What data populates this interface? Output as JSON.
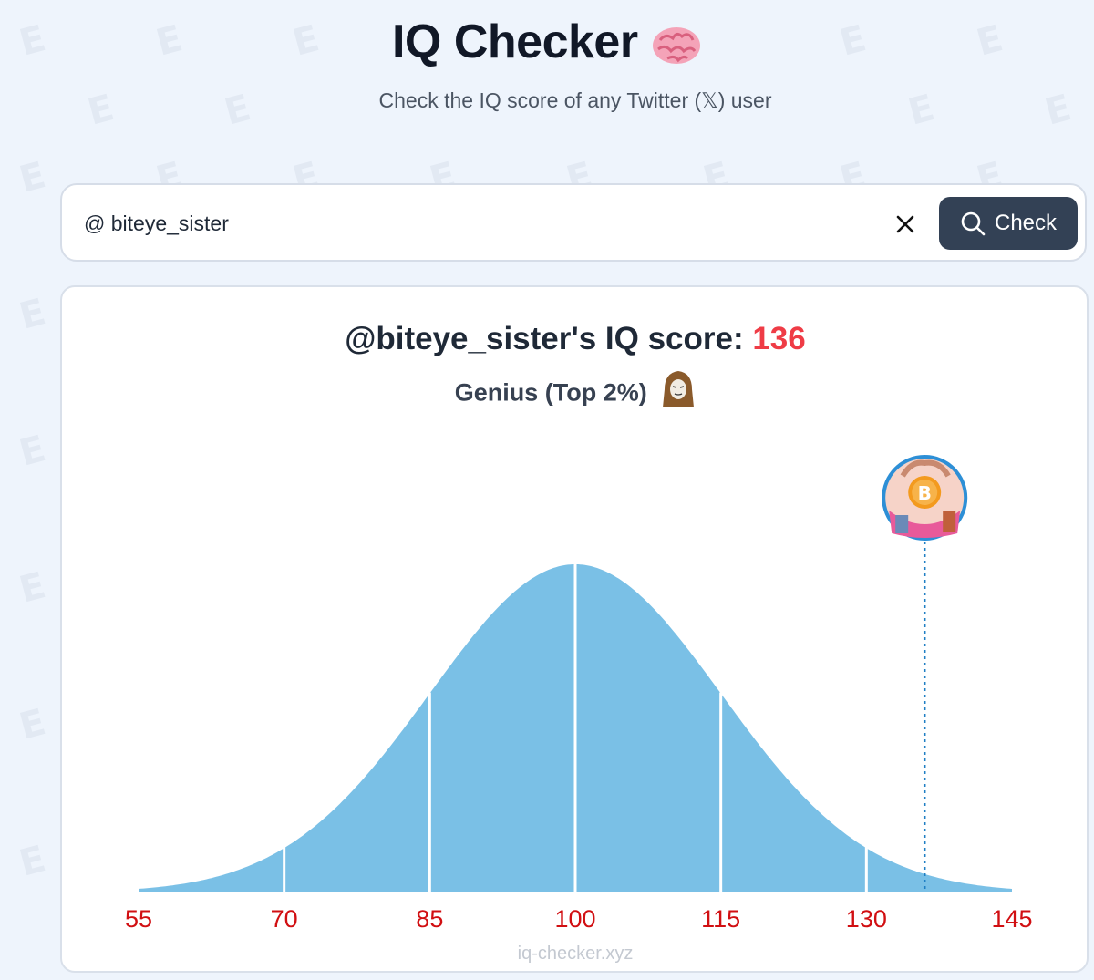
{
  "header": {
    "title": "IQ Checker",
    "subtitle": "Check the IQ score of any Twitter (𝕏) user",
    "brain_icon": "brain-emoji-icon"
  },
  "search": {
    "value": "@ biteye_sister",
    "clear_icon": "close-icon",
    "button_label": "Check",
    "button_icon": "search-icon"
  },
  "result": {
    "handle_prefix": "@biteye_sister's IQ score: ",
    "score": "136",
    "category": "Genius (Top 2%)",
    "category_icon": "hooded-wojak-icon",
    "avatar_icon": "user-avatar-bitcoin-icon"
  },
  "colors": {
    "accent_red": "#ef3c46",
    "tick_red": "#d10f12",
    "curve_fill": "#7ac0e6",
    "button_bg": "#334155",
    "marker_line": "#1f7fc4"
  },
  "chart_data": {
    "type": "area",
    "title": "",
    "xlabel": "",
    "ylabel": "",
    "distribution": "normal",
    "mean": 100,
    "sd": 15,
    "xlim": [
      55,
      145
    ],
    "ticks": [
      55,
      70,
      85,
      100,
      115,
      130,
      145
    ],
    "segment_dividers": [
      70,
      85,
      100,
      115,
      130
    ],
    "marker": {
      "value": 136
    },
    "grid": false
  },
  "footer": {
    "watermark": "iq-checker.xyz"
  }
}
